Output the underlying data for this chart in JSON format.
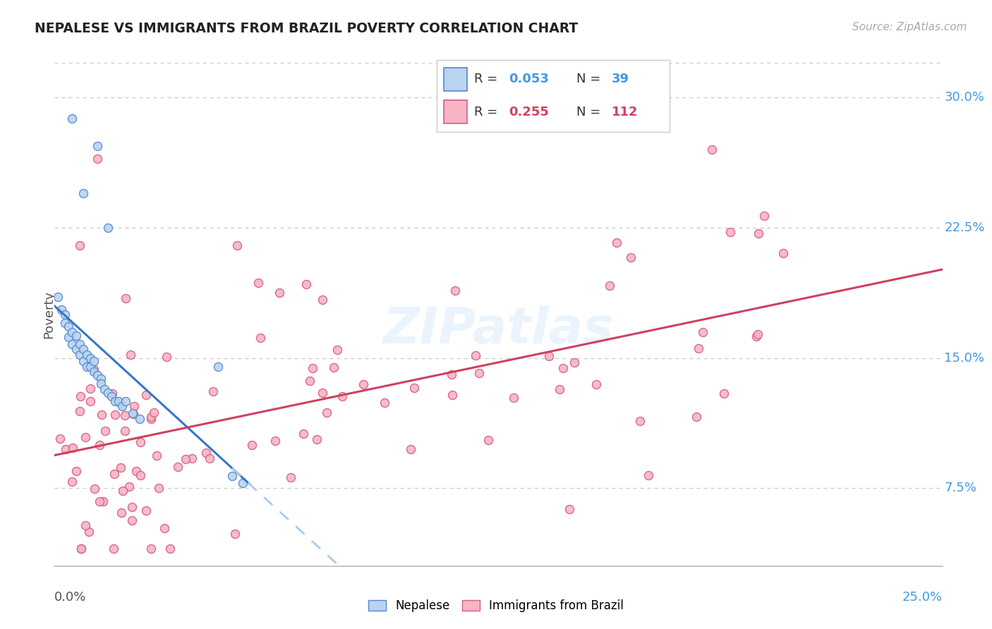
{
  "title": "NEPALESE VS IMMIGRANTS FROM BRAZIL POVERTY CORRELATION CHART",
  "source": "Source: ZipAtlas.com",
  "ylabel": "Poverty",
  "ytick_labels": [
    "7.5%",
    "15.0%",
    "22.5%",
    "30.0%"
  ],
  "ytick_values": [
    0.075,
    0.15,
    0.225,
    0.3
  ],
  "xlim": [
    0.0,
    0.25
  ],
  "ylim": [
    0.03,
    0.32
  ],
  "background_color": "#ffffff",
  "grid_color": "#c8c8c8",
  "nepalese_color": "#b8d4f0",
  "brazil_color": "#f8b4c4",
  "nepalese_edge_color": "#5588cc",
  "brazil_edge_color": "#d06080",
  "line_nepalese_color": "#3377cc",
  "line_brazil_color": "#d04060",
  "line_dashed_color": "#aaccee",
  "legend_box_color": "#ffffff",
  "legend_border_color": "#cccccc",
  "title_color": "#222222",
  "axis_label_color": "#4499dd",
  "tick_color": "#777777",
  "watermark_color": "#c8e0f8",
  "watermark_alpha": 0.35,
  "nepalese_r": "0.053",
  "nepalese_n": "39",
  "brazil_r": "0.255",
  "brazil_n": "112"
}
